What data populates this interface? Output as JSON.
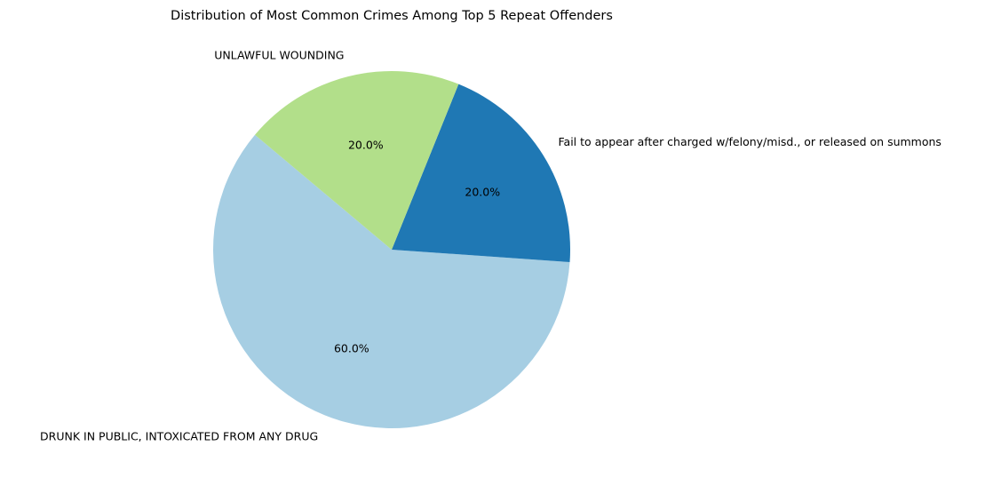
{
  "chart_data": {
    "type": "pie",
    "title": "Distribution of Most Common Crimes Among Top 5 Repeat Offenders",
    "slices": [
      {
        "label": "DRUNK IN PUBLIC, INTOXICATED FROM ANY DRUG",
        "value": 60.0,
        "percent_label": "60.0%",
        "color": "#a6cee3"
      },
      {
        "label": "Fail to appear after charged w/felony/misd., or released on summons",
        "value": 20.0,
        "percent_label": "20.0%",
        "color": "#1f78b4"
      },
      {
        "label": "UNLAWFUL WOUNDING",
        "value": 20.0,
        "percent_label": "20.0%",
        "color": "#b2df8a"
      }
    ],
    "start_angle_deg": 140,
    "direction": "counterclockwise",
    "legend": "none"
  }
}
